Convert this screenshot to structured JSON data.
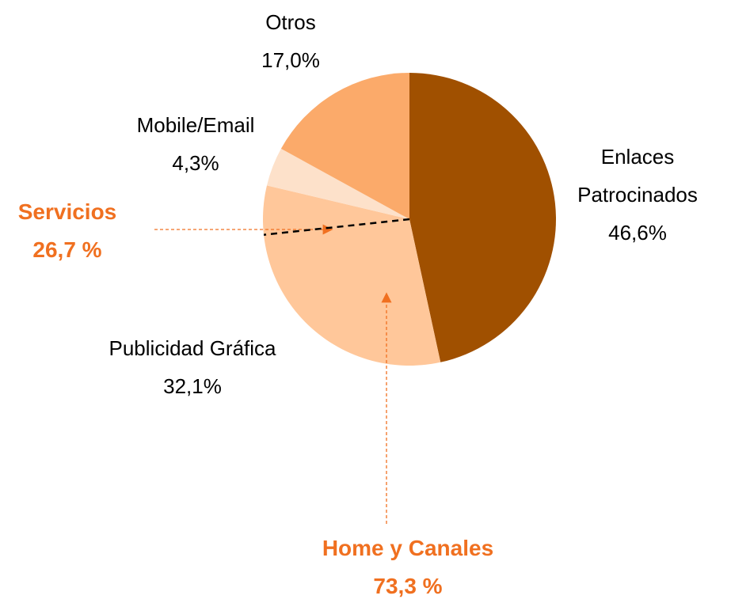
{
  "chart_data": {
    "type": "pie",
    "categories": [
      "Enlaces Patrocinados",
      "Publicidad Gráfica",
      "Mobile/Email",
      "Otros"
    ],
    "values": [
      46.6,
      32.1,
      4.3,
      17.0
    ],
    "value_labels": [
      "46,6%",
      "32,1%",
      "4,3%",
      "17,0%"
    ],
    "colors": [
      "#a05000",
      "#ffc79a",
      "#fde1ca",
      "#fbaa6a"
    ],
    "groups": [
      {
        "name": "Servicios",
        "value": 26.7,
        "label": "26,7 %"
      },
      {
        "name": "Home y Canales",
        "value": 73.3,
        "label": "73,3 %"
      }
    ],
    "group_color": "#f07020"
  }
}
